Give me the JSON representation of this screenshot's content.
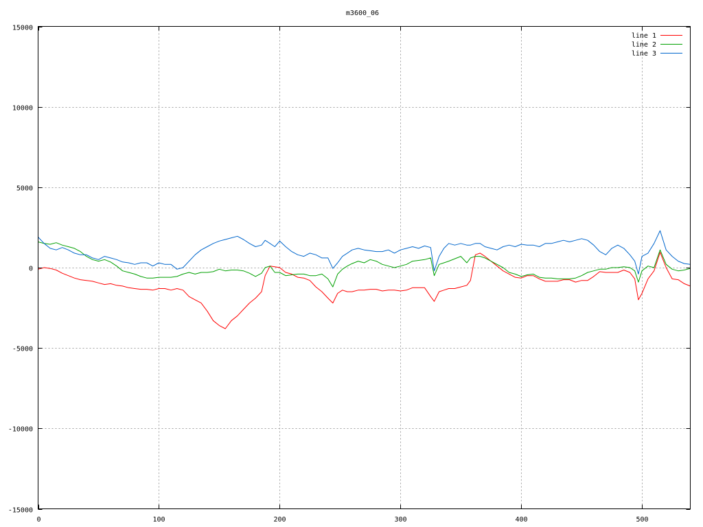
{
  "chart_data": {
    "type": "line",
    "title": "m3600_06",
    "xlabel": "",
    "ylabel": "",
    "xlim": [
      0,
      540
    ],
    "ylim": [
      -15000,
      15000
    ],
    "xticks": [
      0,
      100,
      200,
      300,
      400,
      500
    ],
    "yticks": [
      -15000,
      -10000,
      -5000,
      0,
      5000,
      10000,
      15000
    ],
    "grid": true,
    "legend": "top-right",
    "series": [
      {
        "name": "line 1",
        "color": "#ff0000",
        "x": [
          0,
          5,
          10,
          15,
          20,
          25,
          30,
          35,
          40,
          45,
          50,
          55,
          60,
          65,
          70,
          75,
          80,
          85,
          90,
          95,
          100,
          105,
          110,
          115,
          120,
          125,
          130,
          135,
          140,
          145,
          150,
          155,
          160,
          165,
          170,
          175,
          180,
          185,
          188,
          192,
          196,
          200,
          205,
          210,
          215,
          220,
          225,
          230,
          235,
          240,
          244,
          248,
          252,
          256,
          260,
          265,
          270,
          275,
          280,
          285,
          290,
          295,
          300,
          305,
          310,
          315,
          320,
          325,
          328,
          332,
          336,
          340,
          345,
          350,
          355,
          358,
          362,
          366,
          370,
          375,
          380,
          385,
          390,
          395,
          400,
          405,
          410,
          415,
          420,
          425,
          430,
          435,
          440,
          445,
          450,
          455,
          460,
          465,
          470,
          475,
          480,
          485,
          490,
          494,
          497,
          500,
          505,
          510,
          515,
          520,
          525,
          530,
          535,
          540
        ],
        "y": [
          -100,
          0,
          -50,
          -150,
          -350,
          -500,
          -650,
          -750,
          -800,
          -850,
          -950,
          -1050,
          -1000,
          -1100,
          -1150,
          -1250,
          -1300,
          -1350,
          -1350,
          -1400,
          -1300,
          -1300,
          -1400,
          -1300,
          -1400,
          -1800,
          -2000,
          -2200,
          -2700,
          -3300,
          -3600,
          -3800,
          -3300,
          -3000,
          -2600,
          -2200,
          -1900,
          -1500,
          -500,
          100,
          50,
          0,
          -300,
          -400,
          -600,
          -650,
          -800,
          -1200,
          -1500,
          -1900,
          -2200,
          -1600,
          -1400,
          -1500,
          -1500,
          -1400,
          -1400,
          -1350,
          -1350,
          -1450,
          -1400,
          -1400,
          -1450,
          -1400,
          -1250,
          -1250,
          -1250,
          -1800,
          -2100,
          -1500,
          -1400,
          -1300,
          -1300,
          -1200,
          -1100,
          -800,
          800,
          900,
          700,
          400,
          100,
          -200,
          -400,
          -600,
          -650,
          -500,
          -500,
          -700,
          -850,
          -850,
          -850,
          -750,
          -750,
          -900,
          -800,
          -800,
          -550,
          -250,
          -300,
          -300,
          -300,
          -150,
          -300,
          -700,
          -2000,
          -1600,
          -700,
          -200,
          950,
          0,
          -700,
          -750,
          -1000,
          -1150
        ]
      },
      {
        "name": "line 2",
        "color": "#00a000",
        "x": [
          0,
          5,
          10,
          15,
          20,
          25,
          30,
          35,
          40,
          45,
          50,
          55,
          60,
          65,
          70,
          75,
          80,
          85,
          90,
          95,
          100,
          105,
          110,
          115,
          120,
          125,
          130,
          135,
          140,
          145,
          150,
          155,
          160,
          165,
          170,
          175,
          180,
          185,
          188,
          192,
          196,
          200,
          205,
          210,
          215,
          220,
          225,
          230,
          235,
          240,
          244,
          248,
          252,
          256,
          260,
          265,
          270,
          275,
          280,
          285,
          290,
          295,
          300,
          305,
          310,
          315,
          320,
          325,
          328,
          332,
          336,
          340,
          345,
          350,
          355,
          358,
          362,
          366,
          370,
          375,
          380,
          385,
          390,
          395,
          400,
          405,
          410,
          415,
          420,
          425,
          430,
          435,
          440,
          445,
          450,
          455,
          460,
          465,
          470,
          475,
          480,
          485,
          490,
          494,
          497,
          500,
          505,
          510,
          515,
          520,
          525,
          530,
          535,
          540
        ],
        "y": [
          1600,
          1500,
          1450,
          1550,
          1400,
          1300,
          1200,
          1000,
          700,
          500,
          400,
          500,
          350,
          100,
          -200,
          -300,
          -400,
          -550,
          -650,
          -650,
          -600,
          -600,
          -600,
          -550,
          -400,
          -300,
          -400,
          -300,
          -300,
          -250,
          -100,
          -200,
          -150,
          -150,
          -200,
          -350,
          -550,
          -350,
          0,
          100,
          -300,
          -300,
          -500,
          -450,
          -400,
          -400,
          -500,
          -500,
          -400,
          -700,
          -1200,
          -400,
          -100,
          100,
          250,
          400,
          300,
          500,
          400,
          200,
          100,
          0,
          100,
          200,
          400,
          450,
          500,
          600,
          -500,
          200,
          300,
          400,
          550,
          700,
          300,
          600,
          700,
          700,
          600,
          400,
          200,
          0,
          -300,
          -400,
          -550,
          -450,
          -400,
          -600,
          -650,
          -650,
          -700,
          -700,
          -700,
          -650,
          -500,
          -300,
          -200,
          -100,
          -100,
          0,
          0,
          50,
          0,
          -200,
          -900,
          -200,
          100,
          0,
          1100,
          200,
          -100,
          -200,
          -150,
          -50
        ]
      },
      {
        "name": "line 3",
        "color": "#0066cc",
        "x": [
          0,
          5,
          10,
          15,
          20,
          25,
          30,
          35,
          40,
          45,
          50,
          55,
          60,
          65,
          70,
          75,
          80,
          85,
          90,
          95,
          100,
          105,
          110,
          115,
          120,
          125,
          130,
          135,
          140,
          145,
          150,
          155,
          160,
          165,
          170,
          175,
          180,
          185,
          188,
          192,
          196,
          200,
          205,
          210,
          215,
          220,
          225,
          230,
          235,
          240,
          244,
          248,
          252,
          256,
          260,
          265,
          270,
          275,
          280,
          285,
          290,
          295,
          300,
          305,
          310,
          315,
          320,
          325,
          328,
          332,
          336,
          340,
          345,
          350,
          355,
          358,
          362,
          366,
          370,
          375,
          380,
          385,
          390,
          395,
          400,
          405,
          410,
          415,
          420,
          425,
          430,
          435,
          440,
          445,
          450,
          455,
          460,
          465,
          470,
          475,
          480,
          485,
          490,
          494,
          497,
          500,
          505,
          510,
          515,
          520,
          525,
          530,
          535,
          540
        ],
        "y": [
          1900,
          1500,
          1200,
          1100,
          1250,
          1100,
          900,
          800,
          800,
          600,
          500,
          700,
          600,
          500,
          350,
          300,
          200,
          300,
          300,
          100,
          300,
          200,
          200,
          -100,
          0,
          400,
          800,
          1100,
          1300,
          1500,
          1650,
          1750,
          1850,
          1950,
          1750,
          1500,
          1300,
          1400,
          1700,
          1500,
          1300,
          1650,
          1300,
          1000,
          800,
          700,
          900,
          800,
          600,
          600,
          -50,
          300,
          700,
          900,
          1100,
          1200,
          1100,
          1050,
          1000,
          1000,
          1100,
          900,
          1100,
          1200,
          1300,
          1200,
          1350,
          1250,
          -200,
          700,
          1200,
          1500,
          1400,
          1500,
          1400,
          1400,
          1500,
          1500,
          1300,
          1200,
          1100,
          1300,
          1400,
          1300,
          1450,
          1400,
          1400,
          1300,
          1500,
          1500,
          1600,
          1700,
          1600,
          1700,
          1800,
          1700,
          1400,
          1000,
          800,
          1200,
          1400,
          1200,
          800,
          400,
          -400,
          700,
          900,
          1500,
          2300,
          1100,
          700,
          400,
          250,
          200
        ]
      }
    ]
  }
}
